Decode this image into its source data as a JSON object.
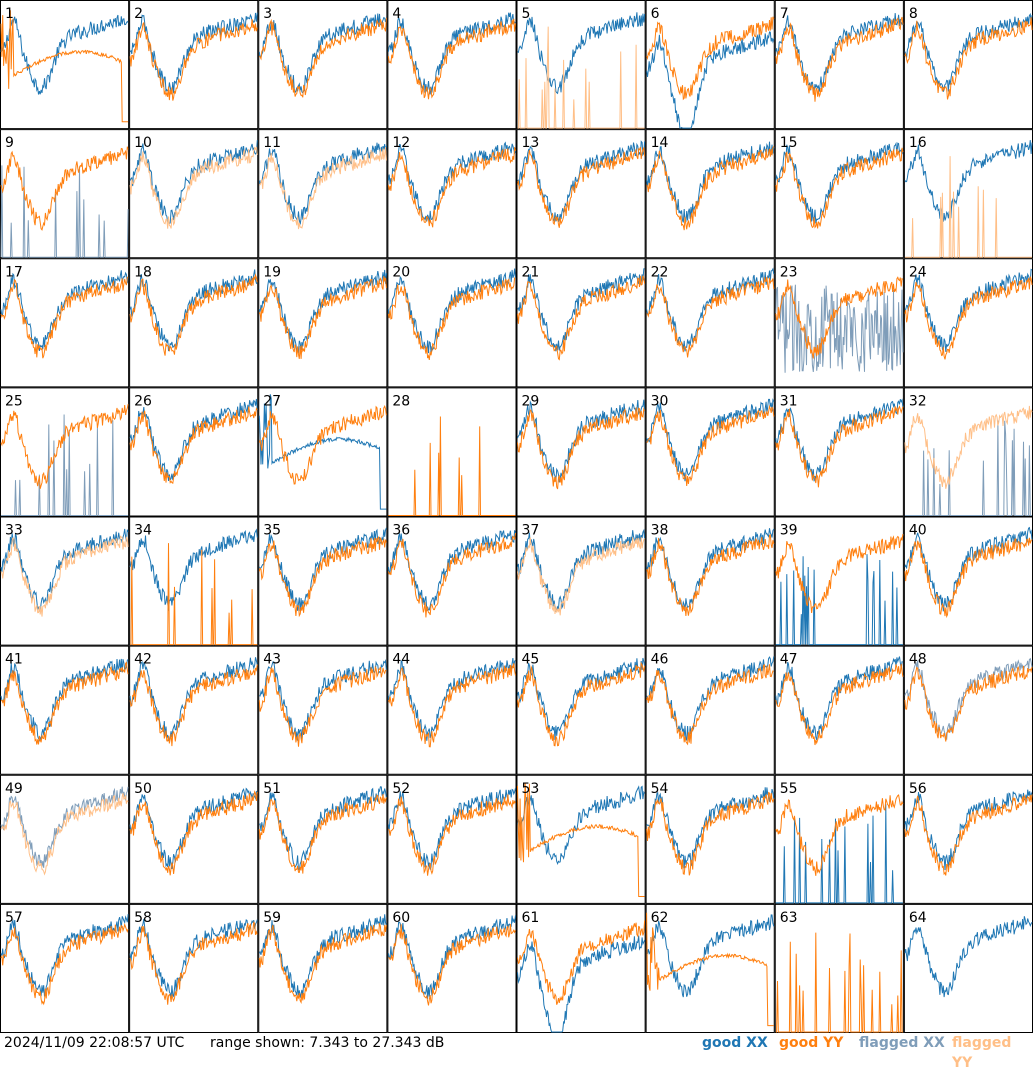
{
  "chart_data": {
    "type": "line",
    "layout": "small-multiples",
    "panel_labels": [
      "1",
      "2",
      "3",
      "4",
      "5",
      "6",
      "7",
      "8",
      "9",
      "10",
      "11",
      "12",
      "13",
      "14",
      "15",
      "16",
      "17",
      "18",
      "19",
      "20",
      "21",
      "22",
      "23",
      "24",
      "25",
      "26",
      "27",
      "28",
      "29",
      "30",
      "31",
      "32",
      "33",
      "34",
      "35",
      "36",
      "37",
      "38",
      "39",
      "40",
      "41",
      "42",
      "43",
      "44",
      "45",
      "46",
      "47",
      "48",
      "49",
      "50",
      "51",
      "52",
      "53",
      "54",
      "55",
      "56",
      "57",
      "58",
      "59",
      "60",
      "61",
      "62",
      "63",
      "64"
    ],
    "ylim": [
      7.343,
      27.343
    ],
    "series": [
      {
        "name": "good XX",
        "color": "#1f77b4"
      },
      {
        "name": "good YY",
        "color": "#ff7f0e"
      },
      {
        "name": "flagged XX",
        "color": "#7f9db9"
      },
      {
        "name": "flagged YY",
        "color": "#ffbf87"
      }
    ],
    "panel_states": {
      "xx": [
        "g",
        "g",
        "g",
        "g",
        "g",
        "g",
        "g",
        "g",
        "f",
        "g",
        "g",
        "g",
        "g",
        "g",
        "g",
        "g",
        "g",
        "g",
        "g",
        "g",
        "g",
        "g",
        "f",
        "g",
        "f",
        "g",
        "g",
        "g",
        "g",
        "g",
        "g",
        "f",
        "g",
        "g",
        "g",
        "g",
        "g",
        "g",
        "g",
        "g",
        "g",
        "g",
        "g",
        "g",
        "g",
        "g",
        "g",
        "f",
        "f",
        "g",
        "g",
        "g",
        "g",
        "g",
        "g",
        "g",
        "g",
        "g",
        "g",
        "g",
        "g",
        "g",
        "g",
        "g"
      ],
      "yy": [
        "g",
        "g",
        "g",
        "g",
        "f",
        "g",
        "g",
        "g",
        "g",
        "f",
        "f",
        "g",
        "g",
        "g",
        "g",
        "f",
        "g",
        "g",
        "g",
        "g",
        "g",
        "g",
        "g",
        "g",
        "g",
        "g",
        "g",
        "g",
        "g",
        "g",
        "g",
        "f",
        "f",
        "g",
        "g",
        "g",
        "f",
        "g",
        "g",
        "g",
        "g",
        "g",
        "g",
        "g",
        "g",
        "g",
        "g",
        "g",
        "f",
        "g",
        "g",
        "g",
        "g",
        "g",
        "g",
        "g",
        "g",
        "g",
        "g",
        "g",
        "g",
        "g",
        "g",
        "g"
      ]
    },
    "panel_shapes": {
      "xx": [
        "typ",
        "typ",
        "typ",
        "typ",
        "typ",
        "low",
        "typ",
        "typ",
        "spike",
        "typ",
        "typ",
        "typ",
        "typ",
        "typ",
        "typ",
        "typ",
        "typ",
        "typ",
        "typ",
        "typ",
        "typ",
        "typ",
        "noise",
        "typ",
        "spike",
        "typ",
        "decay",
        "none",
        "typ",
        "typ",
        "typ",
        "spike",
        "typ",
        "typ",
        "typ",
        "typ",
        "typ",
        "typ",
        "spike",
        "typ",
        "typ",
        "typ",
        "typ",
        "typ",
        "typ",
        "typ",
        "typ",
        "typ",
        "typ",
        "typ",
        "typ",
        "typ",
        "typ",
        "typ",
        "spike",
        "typ",
        "typ",
        "typ",
        "typ",
        "typ",
        "low",
        "typ",
        "none",
        "typ"
      ],
      "yy": [
        "decay",
        "typ",
        "typ",
        "typ",
        "spike",
        "typ",
        "typ",
        "typ",
        "typ",
        "typ",
        "typ",
        "typ",
        "typ",
        "typ",
        "typ",
        "spike",
        "typ",
        "typ",
        "typ",
        "typ",
        "typ",
        "typ",
        "typ",
        "typ",
        "typ",
        "typ",
        "typ",
        "spike",
        "typ",
        "typ",
        "typ",
        "typ",
        "typ",
        "spike",
        "typ",
        "typ",
        "typ",
        "typ",
        "typ",
        "typ",
        "typ",
        "typ",
        "typ",
        "typ",
        "typ",
        "typ",
        "typ",
        "typ",
        "typ",
        "typ",
        "typ",
        "typ",
        "decay",
        "typ",
        "typ",
        "typ",
        "typ",
        "typ",
        "typ",
        "typ",
        "typ",
        "decay",
        "spike",
        "none"
      ]
    }
  },
  "footer": {
    "timestamp": "2024/11/09 22:08:57 UTC",
    "range_text": "range shown: 7.343 to 27.343 dB",
    "legend": {
      "good_xx": "good XX",
      "good_yy": "good YY",
      "flagged_xx": "flagged XX",
      "flagged_yy": "flagged YY"
    }
  }
}
